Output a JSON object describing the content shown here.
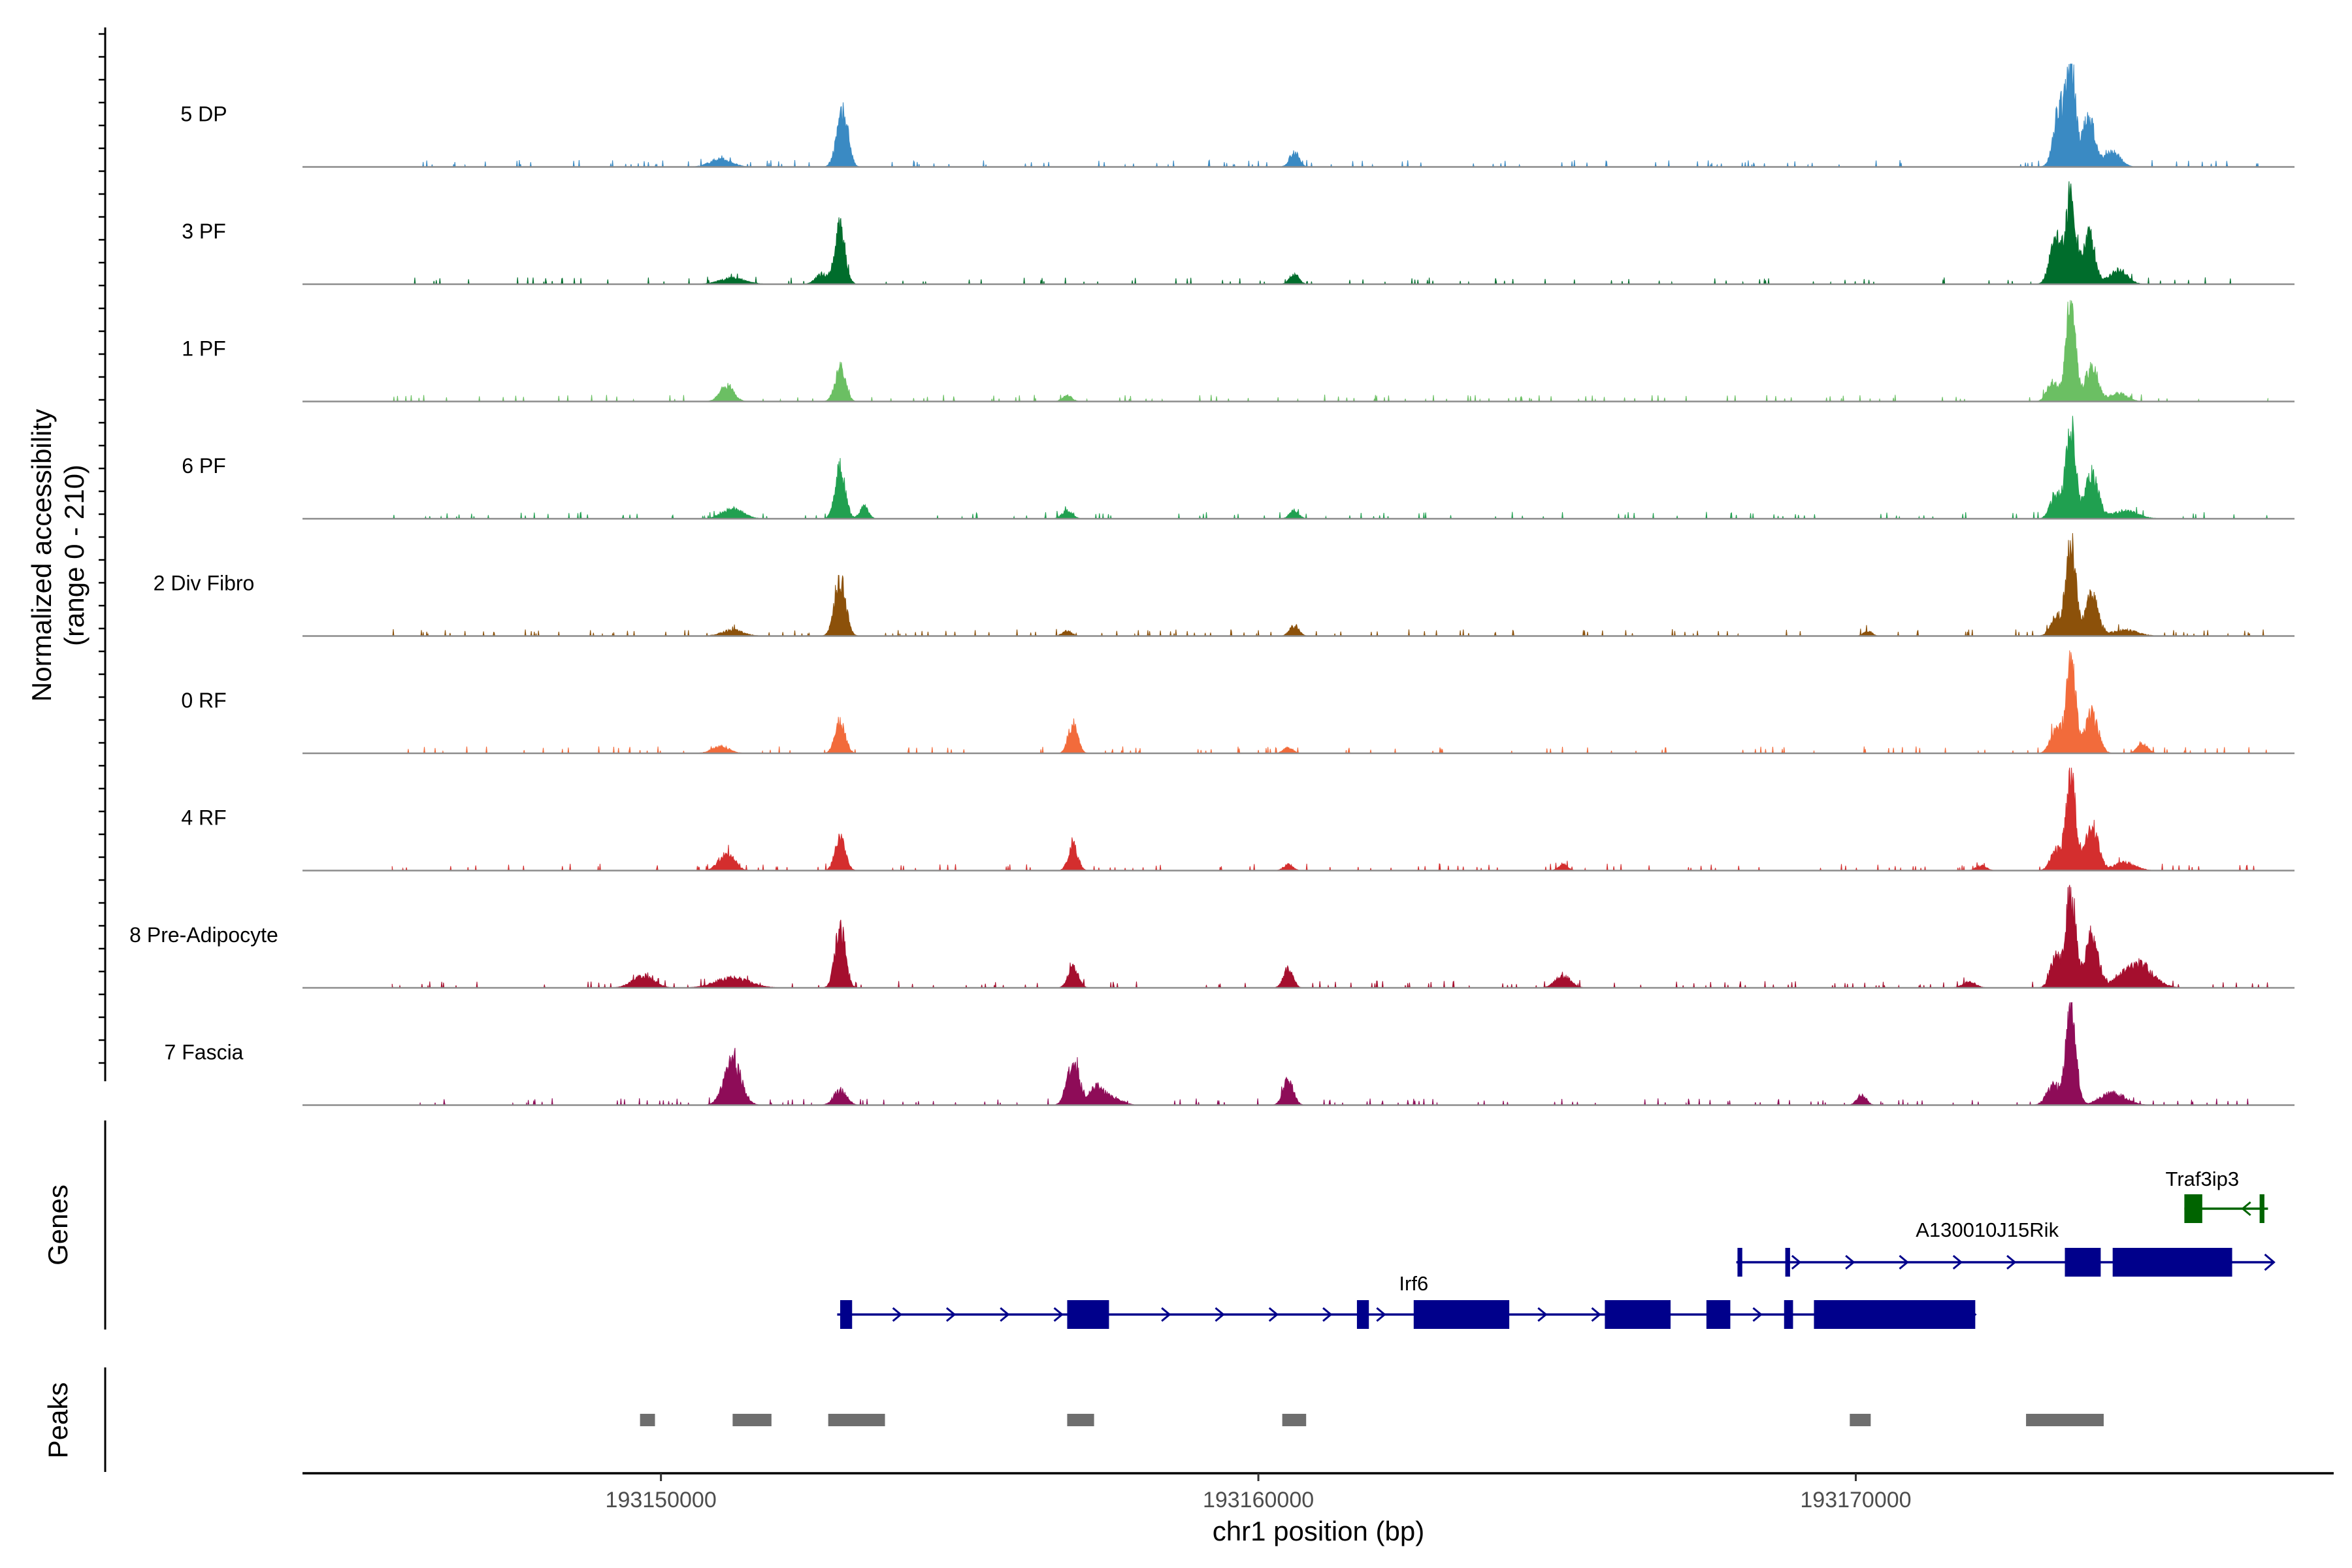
{
  "chart_data": {
    "type": "area",
    "ylabel_line1": "Normalized accessibility",
    "ylabel_line2": "(range 0 - 210)",
    "xlabel": "chr1 position (bp)",
    "ylim": [
      0,
      210
    ],
    "xlim": [
      193144000,
      193178000
    ],
    "xticks": [
      193150000,
      193160000,
      193170000
    ],
    "xtick_labels": [
      "193150000",
      "193160000",
      "193170000"
    ],
    "genes_label": "Genes",
    "peaks_label": "Peaks",
    "tracks": [
      {
        "name": "5 DP",
        "color": "#3A8AC3",
        "peaks": [
          [
            193153000,
            0.38,
            120
          ],
          [
            193153100,
            0.27,
            100
          ],
          [
            193151000,
            0.08,
            250
          ],
          [
            193160600,
            0.15,
            110
          ],
          [
            193173600,
            1.0,
            110
          ],
          [
            193173400,
            0.55,
            130
          ],
          [
            193173900,
            0.5,
            140
          ],
          [
            193174300,
            0.15,
            180
          ]
        ]
      },
      {
        "name": "3 PF",
        "color": "#006D2C",
        "peaks": [
          [
            193153000,
            0.56,
            120
          ],
          [
            193152700,
            0.1,
            150
          ],
          [
            193151200,
            0.06,
            300
          ],
          [
            193160600,
            0.1,
            110
          ],
          [
            193173600,
            0.9,
            110
          ],
          [
            193173350,
            0.45,
            140
          ],
          [
            193173900,
            0.5,
            140
          ],
          [
            193174400,
            0.15,
            200
          ]
        ]
      },
      {
        "name": "1 PF",
        "color": "#6BBF63",
        "peaks": [
          [
            193153000,
            0.35,
            120
          ],
          [
            193151100,
            0.16,
            160
          ],
          [
            193156800,
            0.06,
            110
          ],
          [
            193173600,
            1.0,
            110
          ],
          [
            193173300,
            0.2,
            130
          ],
          [
            193173950,
            0.35,
            150
          ],
          [
            193174400,
            0.08,
            200
          ]
        ]
      },
      {
        "name": "6 PF",
        "color": "#20A050",
        "peaks": [
          [
            193153000,
            0.5,
            120
          ],
          [
            193151200,
            0.1,
            250
          ],
          [
            193153400,
            0.12,
            100
          ],
          [
            193156800,
            0.08,
            120
          ],
          [
            193160600,
            0.08,
            110
          ],
          [
            193173600,
            0.95,
            110
          ],
          [
            193173350,
            0.25,
            130
          ],
          [
            193173950,
            0.45,
            150
          ],
          [
            193174500,
            0.08,
            300
          ]
        ]
      },
      {
        "name": "2 Div Fibro",
        "color": "#8C510A",
        "peaks": [
          [
            193153000,
            0.55,
            130
          ],
          [
            193151200,
            0.06,
            250
          ],
          [
            193156800,
            0.05,
            110
          ],
          [
            193160600,
            0.1,
            110
          ],
          [
            193173600,
            1.0,
            110
          ],
          [
            193173350,
            0.2,
            130
          ],
          [
            193173950,
            0.4,
            150
          ],
          [
            193174500,
            0.06,
            300
          ],
          [
            193170200,
            0.05,
            100
          ]
        ]
      },
      {
        "name": "0 RF",
        "color": "#F26B3B",
        "peaks": [
          [
            193153000,
            0.32,
            120
          ],
          [
            193151000,
            0.07,
            200
          ],
          [
            193156900,
            0.3,
            110
          ],
          [
            193160500,
            0.06,
            110
          ],
          [
            193173600,
            0.95,
            110
          ],
          [
            193173350,
            0.25,
            130
          ],
          [
            193173950,
            0.4,
            150
          ],
          [
            193174800,
            0.1,
            120
          ]
        ]
      },
      {
        "name": "4 RF",
        "color": "#D42E2E",
        "peaks": [
          [
            193153000,
            0.32,
            120
          ],
          [
            193151100,
            0.18,
            180
          ],
          [
            193156900,
            0.25,
            110
          ],
          [
            193160500,
            0.06,
            110
          ],
          [
            193165100,
            0.06,
            110
          ],
          [
            193173600,
            1.0,
            110
          ],
          [
            193173350,
            0.2,
            130
          ],
          [
            193173950,
            0.45,
            150
          ],
          [
            193174500,
            0.08,
            250
          ],
          [
            193172100,
            0.05,
            120
          ]
        ]
      },
      {
        "name": "8 Pre-Adipocyte",
        "color": "#A50F2E",
        "peaks": [
          [
            193153000,
            0.6,
            120
          ],
          [
            193149700,
            0.12,
            250
          ],
          [
            193151200,
            0.1,
            400
          ],
          [
            193156900,
            0.2,
            120
          ],
          [
            193160500,
            0.2,
            110
          ],
          [
            193165100,
            0.12,
            180
          ],
          [
            193173600,
            1.0,
            110
          ],
          [
            193173350,
            0.3,
            130
          ],
          [
            193173950,
            0.55,
            150
          ],
          [
            193174700,
            0.25,
            350
          ],
          [
            193171900,
            0.06,
            150
          ]
        ]
      },
      {
        "name": "7 Fascia",
        "color": "#8E0C58",
        "peaks": [
          [
            193151200,
            0.45,
            200
          ],
          [
            193153000,
            0.15,
            150
          ],
          [
            193156900,
            0.45,
            140
          ],
          [
            193157300,
            0.18,
            180
          ],
          [
            193160500,
            0.25,
            120
          ],
          [
            193170100,
            0.1,
            110
          ],
          [
            193173600,
            0.95,
            120
          ],
          [
            193173300,
            0.2,
            150
          ],
          [
            193174300,
            0.12,
            300
          ],
          [
            193157600,
            0.06,
            200
          ]
        ]
      }
    ],
    "genes": [
      {
        "name": "Traf3ip3",
        "color": "#006400",
        "strand": "-",
        "start": 193175500,
        "end": 193176900,
        "exons": [
          [
            193175500,
            193175800
          ],
          [
            193176760,
            193176840
          ]
        ]
      },
      {
        "name": "A130010J15Rik",
        "color": "#00008B",
        "strand": "+",
        "start": 193168000,
        "end": 193177000,
        "exons": [
          [
            193168020,
            193168100
          ],
          [
            193168820,
            193168900
          ],
          [
            193173500,
            193174100
          ],
          [
            193174300,
            193176300
          ]
        ]
      },
      {
        "name": "Irf6",
        "color": "#00008B",
        "strand": "+",
        "start": 193152950,
        "end": 193172000,
        "exons": [
          [
            193153000,
            193153200
          ],
          [
            193156800,
            193157500
          ],
          [
            193161650,
            193161850
          ],
          [
            193162600,
            193164200
          ],
          [
            193165800,
            193166900
          ],
          [
            193167500,
            193167900
          ],
          [
            193168800,
            193168950
          ],
          [
            193169300,
            193172000
          ]
        ]
      }
    ],
    "peak_regions": [
      [
        193149650,
        193149900
      ],
      [
        193151200,
        193151850
      ],
      [
        193152800,
        193153750
      ],
      [
        193156800,
        193157250
      ],
      [
        193160400,
        193160800
      ],
      [
        193169900,
        193170250
      ],
      [
        193172850,
        193174150
      ]
    ]
  }
}
